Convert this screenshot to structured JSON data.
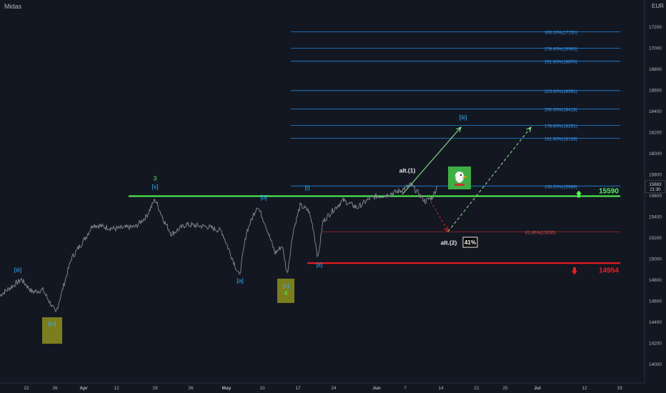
{
  "symbol": "Midas",
  "currency": "EUR",
  "colors": {
    "background": "#131722",
    "price_line": "#8a8d96",
    "fib": "#2962ff",
    "fib_text": "#3d8bff",
    "green": "#4cff4c",
    "red": "#ff1a1a",
    "wave_label": "#2eb6ff",
    "olive": "#8f8f1c"
  },
  "chart_data": {
    "type": "line",
    "title": "",
    "ylim": [
      13900,
      17350
    ],
    "y_ticks": [
      14000,
      14200,
      14400,
      14600,
      14800,
      15000,
      15200,
      15400,
      15600,
      15800,
      16000,
      16200,
      16400,
      16600,
      16800,
      17000,
      17200
    ],
    "x_ticks": [
      "22",
      "26",
      "Apr",
      "12",
      "19",
      "26",
      "May",
      "10",
      "17",
      "24",
      "Jun",
      "7",
      "14",
      "21",
      "25",
      "Jul",
      "12",
      "19"
    ],
    "x_tick_index": [
      37,
      77,
      117,
      163,
      217,
      267,
      317,
      367,
      417,
      467,
      527,
      567,
      617,
      667,
      707,
      752,
      818,
      867
    ],
    "last_price": "15683",
    "countdown": "21:30",
    "series": [
      {
        "x": [
          0,
          30,
          45,
          60,
          70,
          78,
          100,
          120,
          130,
          160,
          190,
          205,
          217,
          230,
          240,
          260,
          290,
          310,
          335,
          345,
          360,
          370,
          385,
          395,
          402,
          410,
          420,
          432,
          438,
          445,
          452,
          465,
          480,
          500,
          520,
          540,
          560,
          575,
          585,
          595,
          605,
          612
        ],
        "y": [
          14650,
          14800,
          14680,
          14700,
          14580,
          14480,
          15000,
          15200,
          15320,
          15280,
          15300,
          15400,
          15560,
          15350,
          15230,
          15320,
          15300,
          15260,
          14830,
          15250,
          15500,
          15350,
          15050,
          15120,
          14850,
          15250,
          15500,
          15450,
          15300,
          15000,
          15350,
          15450,
          15550,
          15480,
          15580,
          15600,
          15640,
          15700,
          15620,
          15540,
          15580,
          15683
        ]
      }
    ],
    "fib_levels": [
      {
        "label": "300.00%(17150)",
        "value": 17150
      },
      {
        "label": "278.60%(16993)",
        "value": 16993
      },
      {
        "label": "261.80%(16870)",
        "value": 16870
      },
      {
        "label": "223.60%(16591)",
        "value": 16591
      },
      {
        "label": "200.00%(16418)",
        "value": 16418
      },
      {
        "label": "178.60%(16261)",
        "value": 16261
      },
      {
        "label": "161.80%(16138)",
        "value": 16138
      },
      {
        "label": "100.00%(15686)",
        "value": 15686
      },
      {
        "label": "61.80%(15250)",
        "value": 15250
      }
    ],
    "support_line": {
      "label": "15590",
      "value": 15590
    },
    "stop_line": {
      "label": "14954",
      "value": 14954
    },
    "wave_labels": [
      {
        "text": "[iii]",
        "x": 25,
        "y": 14870,
        "color": "blue"
      },
      {
        "text": "[iv]",
        "x": 73,
        "y": 14360,
        "color": "blue"
      },
      {
        "text": "3",
        "x": 217,
        "y": 15740,
        "color": "green"
      },
      {
        "text": "[v]",
        "x": 217,
        "y": 15660,
        "color": "blue"
      },
      {
        "text": "[a]",
        "x": 336,
        "y": 14770,
        "color": "blue"
      },
      {
        "text": "[b]",
        "x": 369,
        "y": 15560,
        "color": "blue"
      },
      {
        "text": "[c]",
        "x": 400,
        "y": 14720,
        "color": "blue"
      },
      {
        "text": "4",
        "x": 400,
        "y": 14650,
        "color": "green"
      },
      {
        "text": "[i]",
        "x": 430,
        "y": 15650,
        "color": "blue"
      },
      {
        "text": "[ii]",
        "x": 447,
        "y": 14920,
        "color": "blue"
      },
      {
        "text": "[iii]",
        "x": 648,
        "y": 16320,
        "color": "blue"
      },
      {
        "text": "alt.(1)",
        "x": 570,
        "y": 15815,
        "color": "white"
      },
      {
        "text": "alt.(2)",
        "x": 628,
        "y": 15130,
        "color": "white"
      }
    ],
    "percent_badge": "41%"
  }
}
